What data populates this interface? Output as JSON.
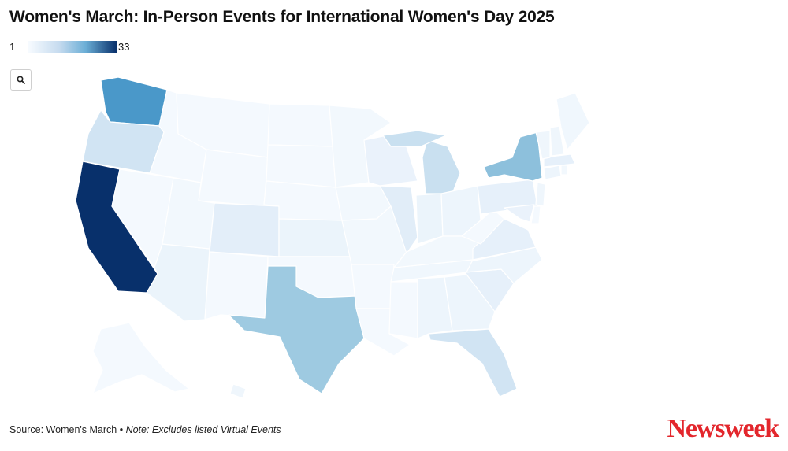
{
  "header": {
    "title": "Women's March: In-Person Events for International Women's Day 2025"
  },
  "legend": {
    "min": "1",
    "max": "33",
    "color_low": "#f7fbff",
    "color_high": "#08306b"
  },
  "controls": {
    "zoom_icon": "search-icon"
  },
  "footer": {
    "source": "Source: Women's March",
    "separator": " • ",
    "note": "Note: Excludes listed Virtual Events"
  },
  "brand": {
    "logo": "Newsweek",
    "color": "#e3262c"
  },
  "chart_data": {
    "type": "choropleth",
    "scale": [
      1,
      33
    ],
    "regions": [
      {
        "state": "California",
        "level": 1.0
      },
      {
        "state": "Washington",
        "level": 0.55
      },
      {
        "state": "New York",
        "level": 0.35
      },
      {
        "state": "Texas",
        "level": 0.3
      },
      {
        "state": "Oregon",
        "level": 0.18
      },
      {
        "state": "Michigan",
        "level": 0.2
      },
      {
        "state": "Florida",
        "level": 0.18
      },
      {
        "state": "Colorado",
        "level": 0.12
      },
      {
        "state": "Illinois",
        "level": 0.13
      },
      {
        "state": "South Carolina",
        "level": 0.1
      },
      {
        "state": "Virginia",
        "level": 0.1
      },
      {
        "state": "Pennsylvania",
        "level": 0.1
      },
      {
        "state": "Massachusetts",
        "level": 0.1
      },
      {
        "state": "Wisconsin",
        "level": 0.08
      },
      {
        "state": "Arizona",
        "level": 0.07
      },
      {
        "state": "Kansas",
        "level": 0.07
      },
      {
        "state": "Indiana",
        "level": 0.07
      },
      {
        "state": "Ohio",
        "level": 0.06
      },
      {
        "state": "North Carolina",
        "level": 0.06
      },
      {
        "state": "Georgia",
        "level": 0.06
      },
      {
        "state": "Alabama",
        "level": 0.06
      },
      {
        "state": "Maryland",
        "level": 0.08
      },
      {
        "state": "New Jersey",
        "level": 0.05
      },
      {
        "state": "Connecticut",
        "level": 0.06
      },
      {
        "state": "Vermont",
        "level": 0.05
      },
      {
        "state": "New Hampshire",
        "level": 0.05
      },
      {
        "state": "Maine",
        "level": 0.04
      },
      {
        "state": "Hawaii",
        "level": 0.05
      },
      {
        "state": "Minnesota",
        "level": 0.03
      },
      {
        "state": "Iowa",
        "level": 0.03
      },
      {
        "state": "Missouri",
        "level": 0.03
      },
      {
        "state": "Tennessee",
        "level": 0.04
      },
      {
        "state": "Kentucky",
        "level": 0.03
      },
      {
        "state": "Nevada",
        "level": 0.02
      },
      {
        "state": "Idaho",
        "level": 0.02
      },
      {
        "state": "Montana",
        "level": 0.02
      },
      {
        "state": "Wyoming",
        "level": 0.02
      },
      {
        "state": "Utah",
        "level": 0.03
      },
      {
        "state": "New Mexico",
        "level": 0.02
      },
      {
        "state": "North Dakota",
        "level": 0.02
      },
      {
        "state": "South Dakota",
        "level": 0.02
      },
      {
        "state": "Nebraska",
        "level": 0.02
      },
      {
        "state": "Oklahoma",
        "level": 0.02
      },
      {
        "state": "Arkansas",
        "level": 0.02
      },
      {
        "state": "Louisiana",
        "level": 0.02
      },
      {
        "state": "Mississippi",
        "level": 0.02
      },
      {
        "state": "West Virginia",
        "level": 0.02
      },
      {
        "state": "Delaware",
        "level": 0.02
      },
      {
        "state": "Rhode Island",
        "level": 0.03
      },
      {
        "state": "Alaska",
        "level": 0.02
      }
    ]
  }
}
